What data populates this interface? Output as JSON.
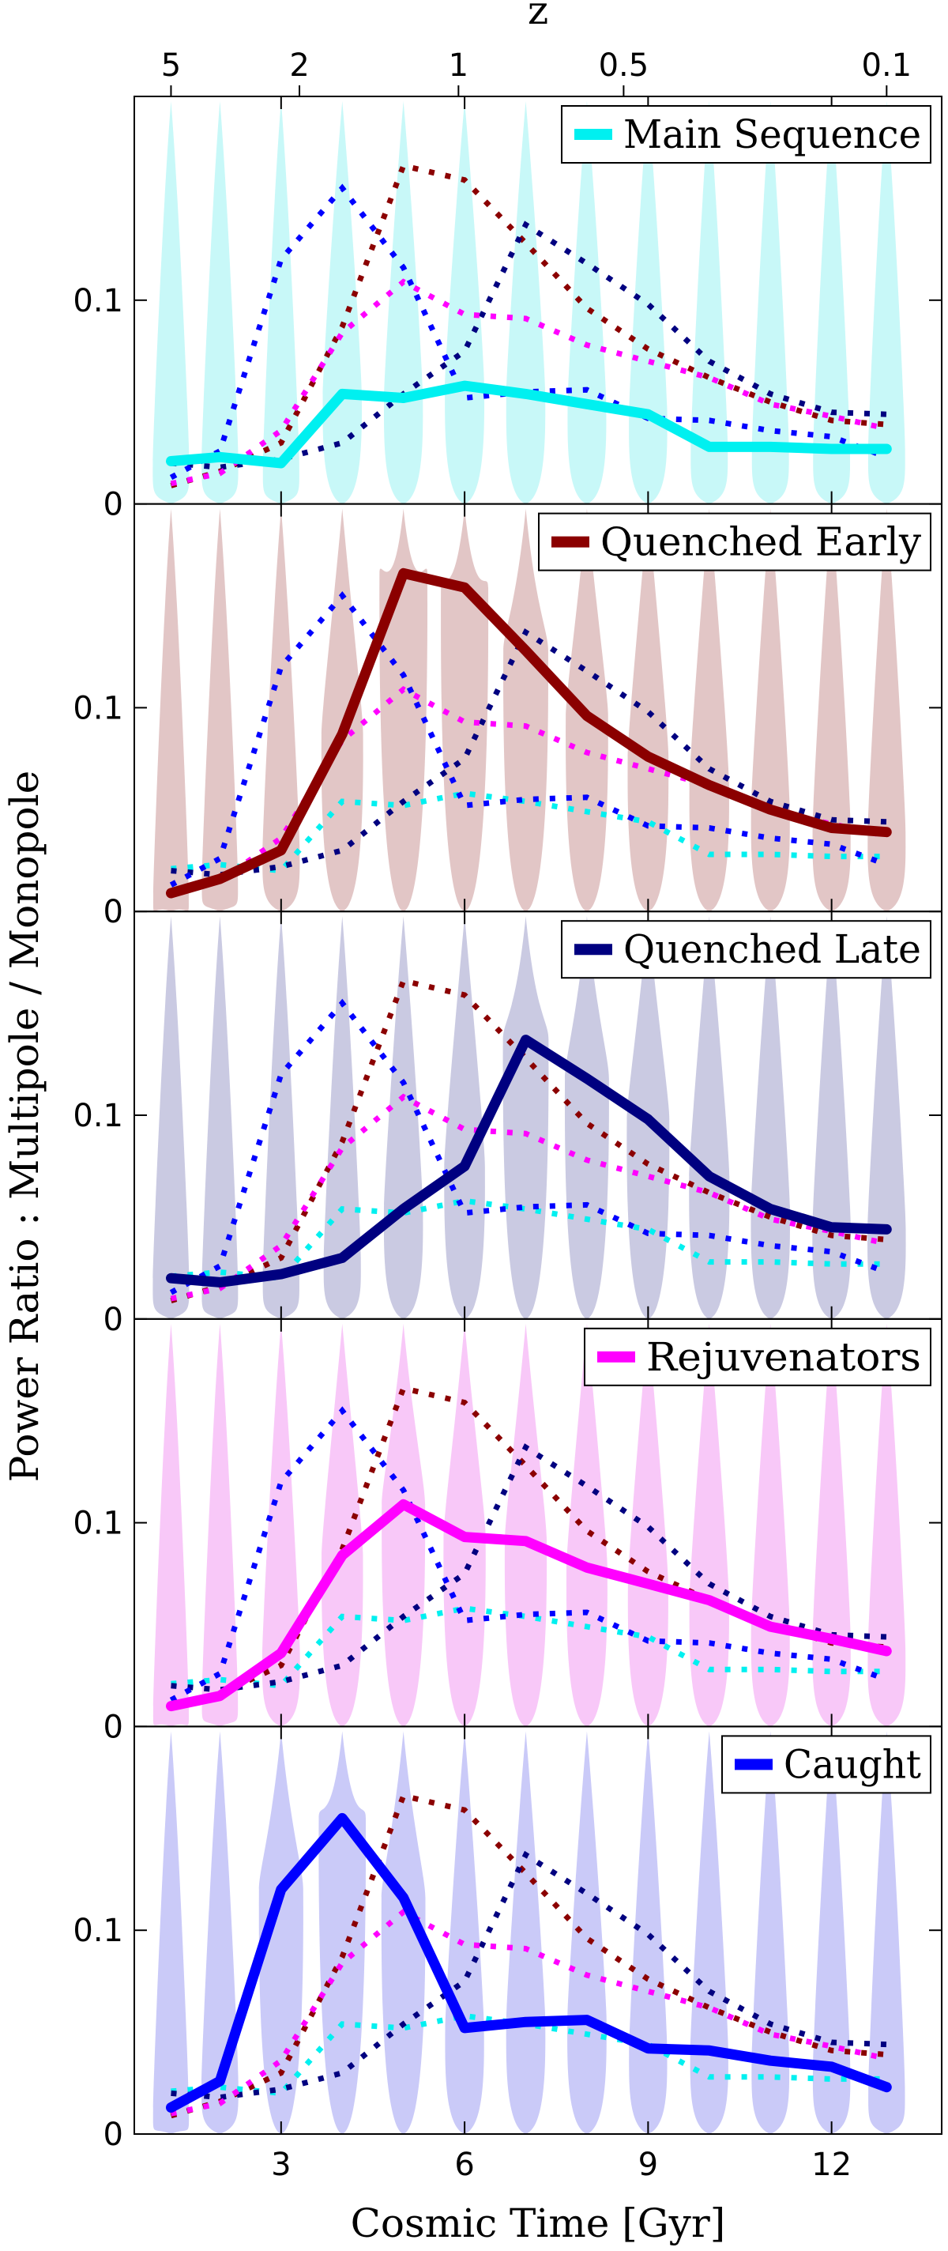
{
  "figure": {
    "ylabel": "Power Ratio : Multipole / Monopole",
    "xlabel": "Cosmic Time [Gyr]",
    "top_axis_label": "z"
  },
  "chart_data": {
    "type": "line",
    "x_axis": {
      "label": "Cosmic Time [Gyr]",
      "range": [
        0.6,
        13.8
      ],
      "ticks": [
        3,
        6,
        9,
        12
      ],
      "tick_labels": [
        "3",
        "6",
        "9",
        "12"
      ]
    },
    "top_axis": {
      "label": "z",
      "ticks": [
        5,
        2,
        1,
        0.5,
        0.1
      ],
      "tick_labels": [
        "5",
        "2",
        "1",
        "0.5",
        "0.1"
      ],
      "tick_times_gyr": [
        1.2,
        3.3,
        5.9,
        8.6,
        12.9
      ]
    },
    "y_axis": {
      "range": [
        0,
        0.2
      ],
      "ticks": [
        0,
        0.1
      ],
      "tick_labels": [
        "0",
        "0.1"
      ]
    },
    "grid": false,
    "legend_placement": "top-right",
    "x": [
      1.2,
      2.0,
      3.0,
      4.0,
      5.0,
      6.0,
      7.0,
      8.0,
      9.0,
      10.0,
      11.0,
      12.0,
      12.9
    ],
    "series": [
      {
        "key": "ms",
        "name": "Main Sequence",
        "color": "#00f0f0",
        "values": [
          0.021,
          0.023,
          0.02,
          0.054,
          0.052,
          0.058,
          0.054,
          0.049,
          0.044,
          0.028,
          0.028,
          0.027,
          0.027
        ]
      },
      {
        "key": "qe",
        "name": "Quenched Early",
        "color": "#8b0000",
        "values": [
          0.009,
          0.016,
          0.03,
          0.087,
          0.166,
          0.159,
          0.128,
          0.096,
          0.076,
          0.062,
          0.05,
          0.041,
          0.039
        ]
      },
      {
        "key": "ql",
        "name": "Quenched Late",
        "color": "#000080",
        "values": [
          0.02,
          0.018,
          0.022,
          0.03,
          0.054,
          0.075,
          0.137,
          0.118,
          0.098,
          0.07,
          0.054,
          0.045,
          0.044
        ]
      },
      {
        "key": "rj",
        "name": "Rejuvenators",
        "color": "#ff00ff",
        "values": [
          0.01,
          0.015,
          0.036,
          0.084,
          0.109,
          0.093,
          0.091,
          0.078,
          0.07,
          0.062,
          0.049,
          0.043,
          0.037
        ]
      },
      {
        "key": "ca",
        "name": "Caught",
        "color": "#0000ff",
        "values": [
          0.013,
          0.026,
          0.12,
          0.155,
          0.116,
          0.052,
          0.055,
          0.056,
          0.042,
          0.041,
          0.036,
          0.033,
          0.023
        ]
      }
    ],
    "panels": [
      {
        "highlight": "ms",
        "shade": "#c8f8f8"
      },
      {
        "highlight": "qe",
        "shade": "#e2c6c6"
      },
      {
        "highlight": "ql",
        "shade": "#cacae2"
      },
      {
        "highlight": "rj",
        "shade": "#f8c8f8"
      },
      {
        "highlight": "ca",
        "shade": "#cacaf8"
      }
    ]
  }
}
